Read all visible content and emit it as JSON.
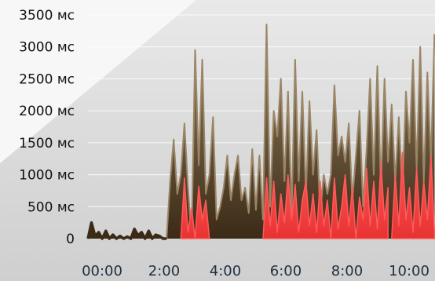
{
  "chart_data": {
    "type": "area",
    "y_unit_suffix": " мс",
    "yticks": [
      0,
      500,
      1000,
      1500,
      2000,
      2500,
      3000,
      3500
    ],
    "ytick_labels": [
      "0",
      "500 мс",
      "1000 мс",
      "1500 мс",
      "2000 мс",
      "2500 мс",
      "3000 мс",
      "3500 мс"
    ],
    "ylim": [
      0,
      3700
    ],
    "xticks": [
      0,
      120,
      240,
      360,
      480,
      600
    ],
    "xtick_labels": [
      "00:00",
      "2:00",
      "4:00",
      "6:00",
      "8:00",
      "10:00"
    ],
    "xlim": [
      0,
      680
    ],
    "grid": true,
    "colors": {
      "total_top": "#9a8565",
      "total_bottom": "#3b2a16",
      "error_top": "#ff5a5a",
      "error_bottom": "#e83232",
      "grid": "#ffffff",
      "background_light": "#f6f6f6"
    },
    "series": [
      {
        "key": "total",
        "x": [
          0,
          7,
          14,
          21,
          28,
          35,
          42,
          49,
          56,
          63,
          70,
          77,
          84,
          91,
          98,
          105,
          112,
          119,
          126,
          133,
          140,
          147,
          154,
          161,
          168,
          175,
          182,
          189,
          196,
          203,
          210,
          217,
          224,
          231,
          238,
          245,
          252,
          259,
          266,
          273,
          280,
          287,
          294,
          301,
          308,
          315,
          322,
          329,
          336,
          343,
          350,
          357,
          364,
          371,
          378,
          385,
          392,
          399,
          406,
          413,
          420,
          427,
          434,
          441,
          448,
          455,
          462,
          469,
          476,
          483,
          490,
          497,
          504,
          511,
          518,
          525,
          532,
          539,
          546,
          553,
          560,
          567,
          574,
          581,
          588,
          595,
          602,
          609,
          616,
          623,
          630,
          637,
          644,
          651,
          658,
          665,
          672,
          679
        ],
        "values": [
          0,
          250,
          40,
          100,
          0,
          120,
          0,
          60,
          0,
          40,
          0,
          30,
          0,
          150,
          50,
          100,
          0,
          120,
          0,
          60,
          40,
          0,
          0,
          900,
          1550,
          700,
          1000,
          1800,
          800,
          0,
          2950,
          1150,
          2800,
          700,
          1000,
          1900,
          300,
          500,
          800,
          1300,
          600,
          1000,
          1300,
          600,
          800,
          400,
          1400,
          450,
          1300,
          300,
          3350,
          500,
          2000,
          1600,
          2500,
          900,
          2300,
          400,
          2800,
          900,
          2300,
          700,
          2150,
          1000,
          1700,
          400,
          1000,
          700,
          1000,
          2400,
          1300,
          1600,
          1200,
          1800,
          600,
          1300,
          2000,
          500,
          1400,
          2500,
          1000,
          2700,
          800,
          2500,
          1200,
          2100,
          900,
          1900,
          700,
          2300,
          1500,
          2800,
          1100,
          3000,
          900,
          2600,
          1200,
          3200
        ]
      },
      {
        "key": "errors",
        "segments": [
          {
            "x": [
              182,
              189,
              196,
              203,
              210,
              217,
              224,
              231,
              238
            ],
            "values": [
              0,
              950,
              100,
              480,
              0,
              820,
              300,
              600,
              0
            ]
          },
          {
            "x": [
              343,
              350,
              357,
              364,
              371,
              378,
              385,
              392,
              399,
              406,
              413,
              420,
              427,
              434,
              441,
              448,
              455,
              462,
              469,
              476,
              483,
              490,
              497,
              504,
              511,
              518,
              525,
              532,
              539,
              546,
              553,
              560,
              567,
              574,
              581,
              588
            ],
            "values": [
              0,
              950,
              200,
              900,
              100,
              700,
              250,
              1000,
              300,
              850,
              100,
              600,
              900,
              200,
              700,
              100,
              900,
              200,
              600,
              0,
              950,
              150,
              500,
              1000,
              200,
              800,
              0,
              650,
              300,
              1100,
              200,
              900,
              150,
              1200,
              300,
              800
            ]
          },
          {
            "x": [
              595,
              602,
              609,
              616,
              623,
              630,
              637,
              644,
              651,
              658,
              665,
              672,
              679
            ],
            "values": [
              0,
              1000,
              200,
              1350,
              300,
              800,
              100,
              1100,
              200,
              900,
              300,
              1300,
              100
            ]
          }
        ]
      }
    ]
  }
}
